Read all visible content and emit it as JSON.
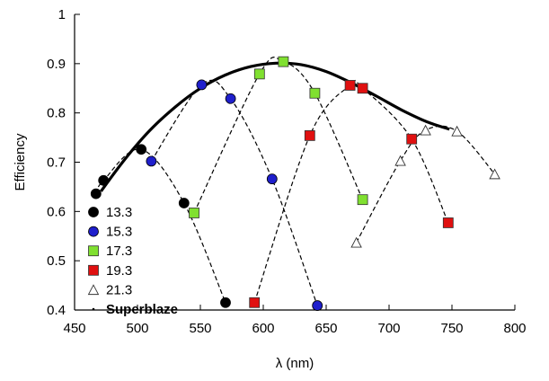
{
  "chart_data": {
    "type": "scatter",
    "xlabel": "λ (nm)",
    "ylabel": "Efficiency",
    "xlim": [
      450,
      800
    ],
    "ylim": [
      0.4,
      1.0
    ],
    "xticks": [
      "450",
      "500",
      "550",
      "600",
      "650",
      "700",
      "750",
      "800"
    ],
    "yticks": [
      "0.4",
      "0.5",
      "0.6",
      "0.7",
      "0.8",
      "0.9",
      "1"
    ],
    "grid": false,
    "legend_position": "bottom-left",
    "series": [
      {
        "name": "13.3",
        "marker": "circle",
        "color": "#000000",
        "edge": "#000000",
        "x": [
          467,
          473,
          503,
          537,
          570
        ],
        "y": [
          0.636,
          0.663,
          0.726,
          0.617,
          0.415
        ]
      },
      {
        "name": "15.3",
        "marker": "circle",
        "color": "#1f1fcc",
        "edge": "#000000",
        "x": [
          511,
          551,
          574,
          607,
          643
        ],
        "y": [
          0.702,
          0.857,
          0.829,
          0.666,
          0.409
        ]
      },
      {
        "name": "17.3",
        "marker": "square",
        "color": "#80e030",
        "edge": "#333333",
        "x": [
          545,
          597,
          616,
          641,
          679
        ],
        "y": [
          0.597,
          0.879,
          0.904,
          0.84,
          0.624
        ]
      },
      {
        "name": "19.3",
        "marker": "square",
        "color": "#e01010",
        "edge": "#333333",
        "x": [
          593,
          637,
          669,
          679,
          718,
          747
        ],
        "y": [
          0.415,
          0.754,
          0.856,
          0.85,
          0.747,
          0.577
        ]
      },
      {
        "name": "21.3",
        "marker": "triangle",
        "color": "#ffffff",
        "edge": "#333333",
        "x": [
          674,
          709,
          729,
          754,
          784
        ],
        "y": [
          0.537,
          0.703,
          0.765,
          0.763,
          0.676
        ]
      }
    ],
    "superblaze": {
      "name": "Superblaze",
      "x": [
        471,
        490,
        510,
        530,
        550,
        570,
        590,
        610,
        630,
        650,
        670,
        690,
        710,
        730,
        748
      ],
      "y": [
        0.641,
        0.706,
        0.765,
        0.812,
        0.85,
        0.877,
        0.894,
        0.901,
        0.898,
        0.884,
        0.861,
        0.834,
        0.806,
        0.782,
        0.767
      ]
    }
  }
}
